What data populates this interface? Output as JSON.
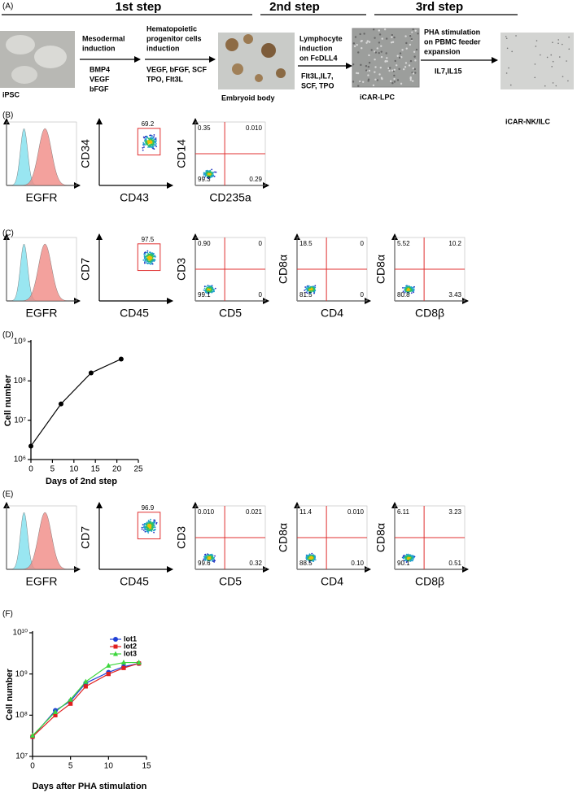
{
  "panel_a": {
    "label": "(A)",
    "steps": [
      "1st step",
      "2nd step",
      "3rd step"
    ],
    "stages": [
      "iPSC",
      "Embryoid body",
      "iCAR-LPC",
      "iCAR-NK/ILC"
    ],
    "transitions": [
      {
        "title": [
          "Mesodermal",
          "induction"
        ],
        "factors": [
          "BMP4",
          "VEGF",
          "bFGF"
        ]
      },
      {
        "title": [
          "Hematopoietic",
          "progenitor cells",
          "induction"
        ],
        "factors": [
          "VEGF, bFGF, SCF",
          "TPO, Flt3L"
        ]
      },
      {
        "title": [
          "Lymphocyte",
          "induction",
          "on FcDLL4"
        ],
        "factors": [
          "Flt3L,IL7,",
          "SCF, TPO"
        ]
      },
      {
        "title": [
          "PHA stimulation",
          "on PBMC feeder",
          "expansion"
        ],
        "factors": [
          "IL7,IL15"
        ]
      }
    ]
  },
  "panel_b": {
    "label": "(B)",
    "plots": [
      {
        "x_label": "EGFR"
      },
      {
        "y_label": "CD34",
        "x_label": "CD43",
        "gate": "69.2"
      },
      {
        "y_label": "CD14",
        "x_label": "CD235a",
        "quadrants": [
          "0.35",
          "0.010",
          "99.3",
          "0.29"
        ]
      }
    ]
  },
  "panel_c": {
    "label": "(C)",
    "plots": [
      {
        "x_label": "EGFR"
      },
      {
        "y_label": "CD7",
        "x_label": "CD45",
        "gate": "97.5"
      },
      {
        "y_label": "CD3",
        "x_label": "CD5",
        "quadrants": [
          "0.90",
          "0",
          "99.1",
          "0"
        ]
      },
      {
        "y_label": "CD8α",
        "x_label": "CD4",
        "quadrants": [
          "18.5",
          "0",
          "81.5",
          "0"
        ]
      },
      {
        "y_label": "CD8α",
        "x_label": "CD8β",
        "quadrants": [
          "5.52",
          "10.2",
          "80.8",
          "3.43"
        ]
      }
    ]
  },
  "panel_e": {
    "label": "(E)",
    "plots": [
      {
        "x_label": "EGFR"
      },
      {
        "y_label": "CD7",
        "x_label": "CD45",
        "gate": "96.9"
      },
      {
        "y_label": "CD3",
        "x_label": "CD5",
        "quadrants": [
          "0.010",
          "0.021",
          "99.6",
          "0.32"
        ]
      },
      {
        "y_label": "CD8α",
        "x_label": "CD4",
        "quadrants": [
          "11.4",
          "0.010",
          "88.5",
          "0.10"
        ]
      },
      {
        "y_label": "CD8α",
        "x_label": "CD8β",
        "quadrants": [
          "6.11",
          "3.23",
          "90.1",
          "0.51"
        ]
      }
    ]
  },
  "chart_data": [
    {
      "type": "line",
      "panel_label": "(D)",
      "x_label": "Days of  2nd step",
      "y_label": "Cell number",
      "log_y": true,
      "x": [
        0,
        7,
        14,
        21
      ],
      "series": [
        {
          "name": null,
          "color": "#000000",
          "marker": "circle",
          "values": [
            2200000,
            26000000,
            160000000,
            360000000
          ]
        }
      ],
      "xlim": [
        0,
        25
      ],
      "xticks": [
        0,
        5,
        10,
        15,
        20,
        25
      ],
      "ylim": [
        1000000,
        1000000000
      ],
      "yticks": [
        {
          "value": 1000000,
          "label": "10⁶"
        },
        {
          "value": 10000000,
          "label": "10⁷"
        },
        {
          "value": 100000000,
          "label": "10⁸"
        },
        {
          "value": 1000000000,
          "label": "10⁹"
        }
      ]
    },
    {
      "type": "line",
      "panel_label": "(F)",
      "x_label": "Days after PHA stimulation",
      "y_label": "Cell number",
      "log_y": true,
      "legend": "upper right",
      "x": [
        0,
        3,
        5,
        7,
        10,
        12,
        14
      ],
      "series": [
        {
          "name": "lot1",
          "color": "#1f3fd6",
          "marker": "circle",
          "values": [
            30000000,
            130000000,
            220000000,
            600000000,
            1100000000,
            1500000000,
            1800000000
          ]
        },
        {
          "name": "lot2",
          "color": "#e02020",
          "marker": "square",
          "values": [
            30000000,
            100000000,
            190000000,
            500000000,
            1000000000,
            1400000000,
            1800000000
          ]
        },
        {
          "name": "lot3",
          "color": "#3cd63c",
          "marker": "triangle",
          "values": [
            32000000,
            120000000,
            240000000,
            650000000,
            1600000000,
            1900000000,
            1900000000
          ]
        }
      ],
      "xlim": [
        0,
        15
      ],
      "xticks": [
        0,
        5,
        10,
        15
      ],
      "ylim": [
        10000000,
        10000000000
      ],
      "yticks": [
        {
          "value": 10000000,
          "label": "10⁷"
        },
        {
          "value": 100000000,
          "label": "10⁸"
        },
        {
          "value": 1000000000,
          "label": "10⁹"
        },
        {
          "value": 10000000000,
          "label": "10¹⁰"
        }
      ]
    }
  ]
}
